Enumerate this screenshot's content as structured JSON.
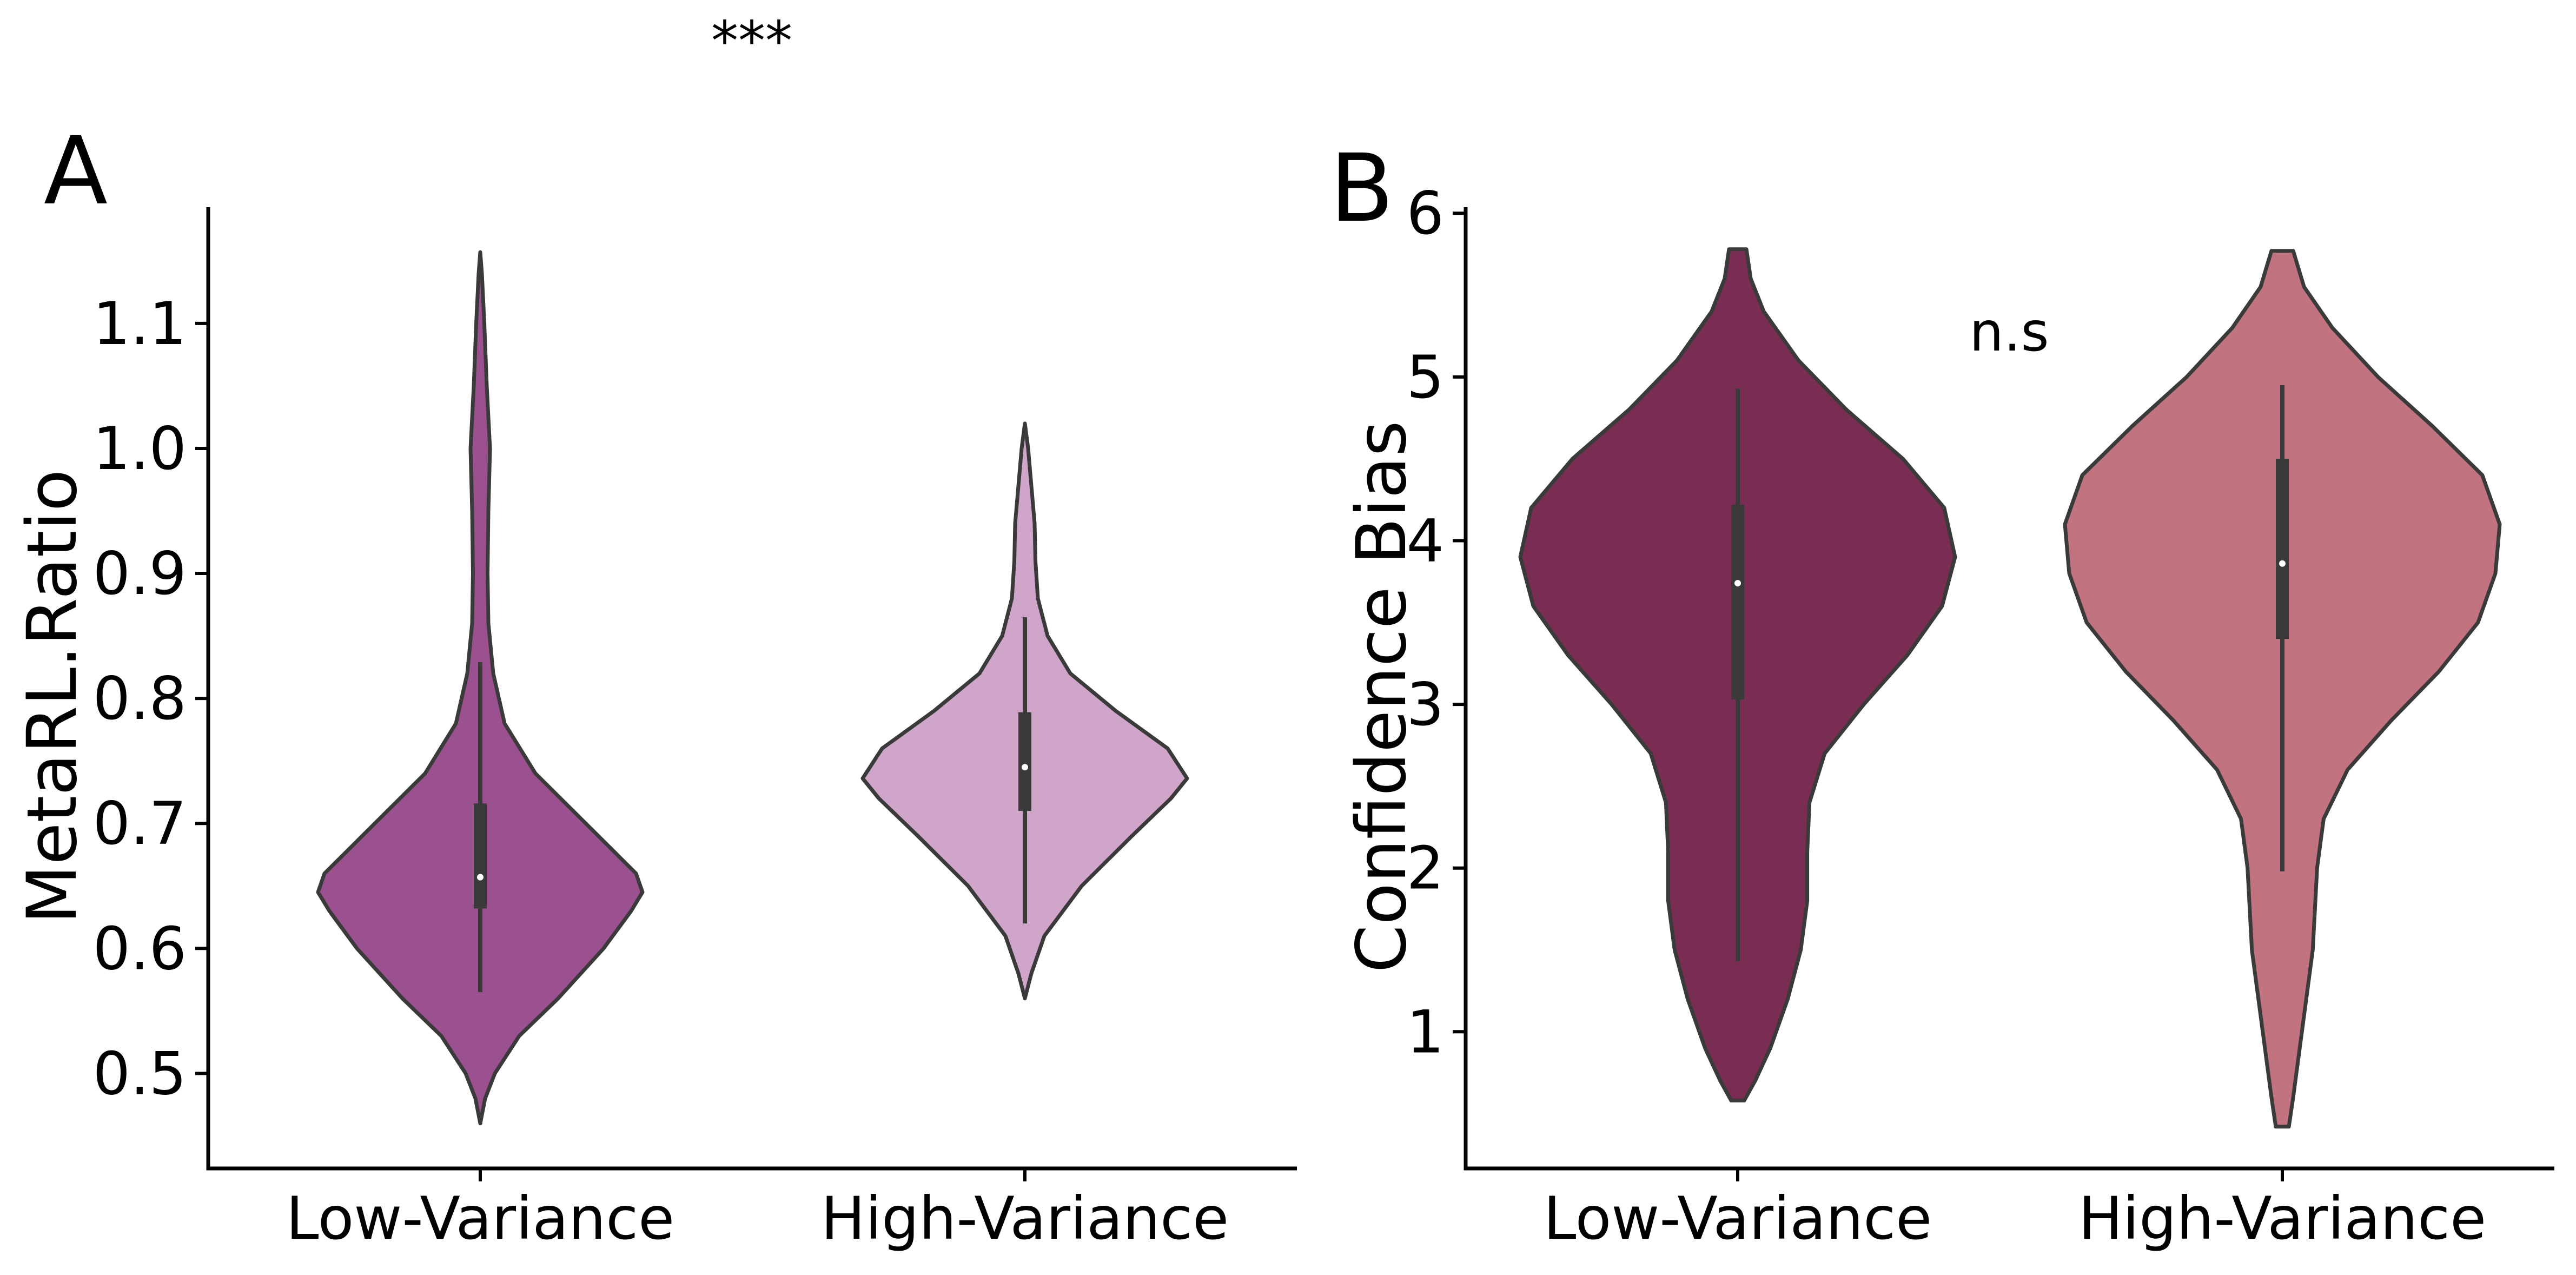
{
  "chart_data": [
    {
      "type": "violin",
      "panel_label": "A",
      "ylabel": "MetaRL.Ratio",
      "categories": [
        "Low-Variance",
        "High-Variance"
      ],
      "yticks": [
        0.5,
        0.6,
        0.7,
        0.8,
        0.9,
        1.0,
        1.1
      ],
      "ytick_labels": [
        "0.5",
        "0.6",
        "0.7",
        "0.8",
        "0.9",
        "1.0",
        "1.1"
      ],
      "ylim": [
        0.424,
        1.193
      ],
      "annotation": "***",
      "colors": [
        "#9b518f",
        "#d0a5ca"
      ],
      "violins": [
        {
          "category": "Low-Variance",
          "color": "#9b518f",
          "median": 0.657,
          "q1": 0.632,
          "q3": 0.716,
          "whisker_low": 0.565,
          "whisker_high": 0.829,
          "density": [
            [
              0.46,
              0.0
            ],
            [
              0.48,
              0.03
            ],
            [
              0.5,
              0.09
            ],
            [
              0.53,
              0.24
            ],
            [
              0.56,
              0.48
            ],
            [
              0.6,
              0.76
            ],
            [
              0.63,
              0.93
            ],
            [
              0.645,
              1.0
            ],
            [
              0.66,
              0.96
            ],
            [
              0.7,
              0.65
            ],
            [
              0.74,
              0.34
            ],
            [
              0.78,
              0.15
            ],
            [
              0.82,
              0.08
            ],
            [
              0.86,
              0.05
            ],
            [
              0.9,
              0.045
            ],
            [
              0.95,
              0.05
            ],
            [
              1.0,
              0.06
            ],
            [
              1.05,
              0.04
            ],
            [
              1.1,
              0.025
            ],
            [
              1.14,
              0.01
            ],
            [
              1.157,
              0.0
            ]
          ]
        },
        {
          "category": "High-Variance",
          "color": "#d0a5ca",
          "median": 0.745,
          "q1": 0.71,
          "q3": 0.789,
          "whisker_low": 0.62,
          "whisker_high": 0.865,
          "density": [
            [
              0.56,
              0.0
            ],
            [
              0.58,
              0.04
            ],
            [
              0.61,
              0.12
            ],
            [
              0.65,
              0.35
            ],
            [
              0.69,
              0.66
            ],
            [
              0.72,
              0.9
            ],
            [
              0.736,
              1.0
            ],
            [
              0.76,
              0.88
            ],
            [
              0.79,
              0.56
            ],
            [
              0.82,
              0.28
            ],
            [
              0.85,
              0.14
            ],
            [
              0.88,
              0.08
            ],
            [
              0.91,
              0.065
            ],
            [
              0.94,
              0.06
            ],
            [
              0.97,
              0.04
            ],
            [
              1.0,
              0.02
            ],
            [
              1.02,
              0.0
            ]
          ]
        }
      ]
    },
    {
      "type": "violin",
      "panel_label": "B",
      "ylabel": "Confidence Bias",
      "categories": [
        "Low-Variance",
        "High-Variance"
      ],
      "yticks": [
        1,
        2,
        3,
        4,
        5,
        6
      ],
      "ytick_labels": [
        "1",
        "2",
        "3",
        "4",
        "5",
        "6"
      ],
      "ylim": [
        0.165,
        6.037
      ],
      "annotation": "n.s",
      "colors": [
        "#7a2d52",
        "#c1737f"
      ],
      "violins": [
        {
          "category": "Low-Variance",
          "color": "#7a2d52",
          "median": 3.74,
          "q1": 3.03,
          "q3": 4.22,
          "whisker_low": 1.43,
          "whisker_high": 4.93,
          "density": [
            [
              0.58,
              0.03
            ],
            [
              0.7,
              0.08
            ],
            [
              0.9,
              0.15
            ],
            [
              1.2,
              0.23
            ],
            [
              1.5,
              0.29
            ],
            [
              1.8,
              0.32
            ],
            [
              2.1,
              0.32
            ],
            [
              2.4,
              0.33
            ],
            [
              2.7,
              0.4
            ],
            [
              3.0,
              0.58
            ],
            [
              3.3,
              0.78
            ],
            [
              3.6,
              0.94
            ],
            [
              3.9,
              1.0
            ],
            [
              4.2,
              0.95
            ],
            [
              4.5,
              0.76
            ],
            [
              4.8,
              0.5
            ],
            [
              5.1,
              0.28
            ],
            [
              5.4,
              0.12
            ],
            [
              5.6,
              0.06
            ],
            [
              5.78,
              0.04
            ]
          ]
        },
        {
          "category": "High-Variance",
          "color": "#c1737f",
          "median": 3.86,
          "q1": 3.4,
          "q3": 4.5,
          "whisker_low": 1.98,
          "whisker_high": 4.95,
          "density": [
            [
              0.42,
              0.03
            ],
            [
              0.6,
              0.05
            ],
            [
              1.0,
              0.09
            ],
            [
              1.5,
              0.14
            ],
            [
              2.0,
              0.16
            ],
            [
              2.3,
              0.19
            ],
            [
              2.6,
              0.3
            ],
            [
              2.9,
              0.5
            ],
            [
              3.2,
              0.72
            ],
            [
              3.5,
              0.9
            ],
            [
              3.8,
              0.98
            ],
            [
              4.1,
              1.0
            ],
            [
              4.4,
              0.92
            ],
            [
              4.7,
              0.69
            ],
            [
              5.0,
              0.44
            ],
            [
              5.3,
              0.23
            ],
            [
              5.55,
              0.1
            ],
            [
              5.77,
              0.05
            ]
          ]
        }
      ]
    }
  ]
}
